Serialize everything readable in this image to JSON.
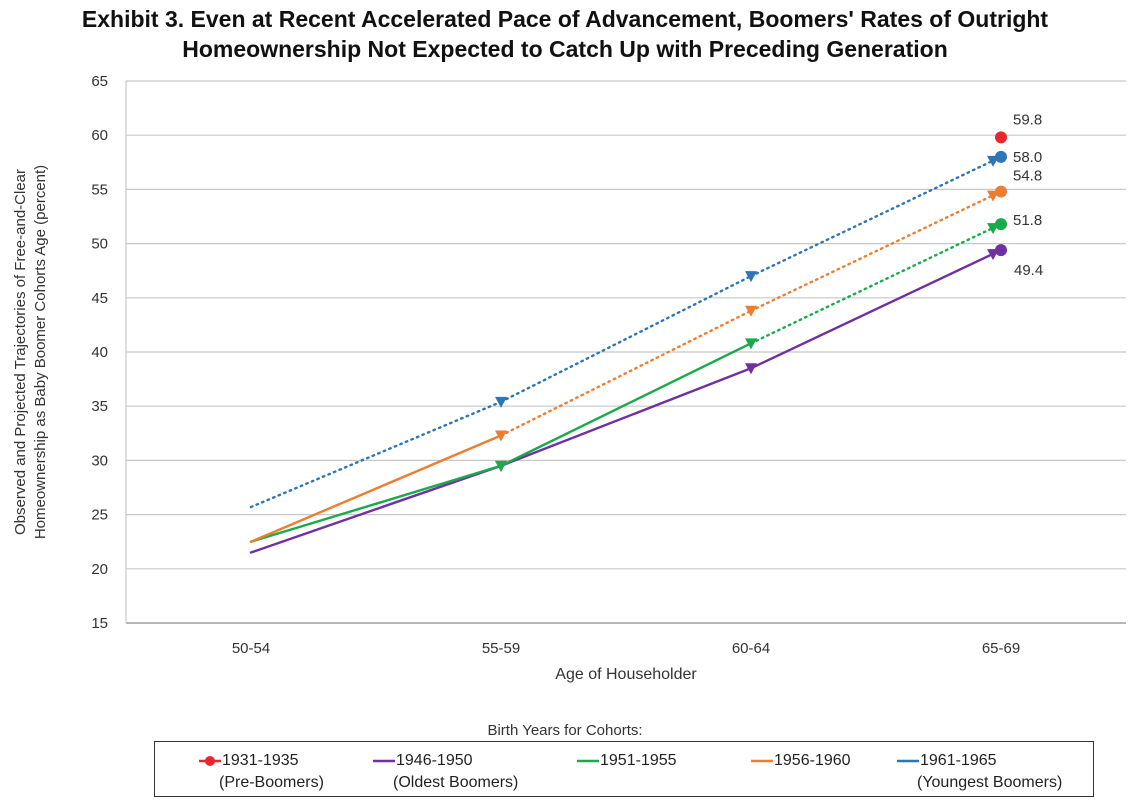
{
  "title_line1": "Exhibit 3. Even at Recent Accelerated Pace of Advancement, Boomers' Rates of Outright",
  "title_line2": "Homeownership Not Expected to Catch Up with Preceding Generation",
  "legend_caption": "Birth Years for Cohorts:",
  "chart_data": {
    "type": "line",
    "title": "Exhibit 3. Even at Recent Accelerated Pace of Advancement, Boomers' Rates of Outright Homeownership Not Expected to Catch Up with Preceding Generation",
    "xlabel": "Age of Householder",
    "ylabel_line1": "Observed and Projected Trajectories of Free-and-Clear",
    "ylabel_line2": "Homeownership as Baby Boomer Cohorts Age (percent)",
    "categories": [
      "50-54",
      "55-59",
      "60-64",
      "65-69"
    ],
    "ylim": [
      15,
      65
    ],
    "yticks": [
      15,
      20,
      25,
      30,
      35,
      40,
      45,
      50,
      55,
      60,
      65
    ],
    "grid": true,
    "legend_position": "bottom",
    "series": [
      {
        "name": "1931-1935",
        "sub": "(Pre-Boomers)",
        "color": "#e8262c",
        "values": [
          null,
          null,
          null,
          59.8
        ],
        "observed_through": 3,
        "end_marker": "circle",
        "end_label": "59.8"
      },
      {
        "name": "1946-1950",
        "sub": "(Oldest Boomers)",
        "color": "#7030a0",
        "values": [
          21.5,
          29.5,
          38.5,
          49.4
        ],
        "observed_through": 3,
        "end_marker": "circle",
        "end_label": "49.4"
      },
      {
        "name": "1951-1955",
        "sub": "",
        "color": "#1aa94c",
        "values": [
          22.5,
          29.5,
          40.8,
          51.8
        ],
        "observed_through": 2,
        "end_marker": "circle",
        "end_label": "51.8"
      },
      {
        "name": "1956-1960",
        "sub": "",
        "color": "#ed7d31",
        "values": [
          22.5,
          32.3,
          43.8,
          54.8
        ],
        "observed_through": 1,
        "end_marker": "circle",
        "end_label": "54.8"
      },
      {
        "name": "1961-1965",
        "sub": "(Youngest Boomers)",
        "color": "#2e75b6",
        "values": [
          25.7,
          35.4,
          47.0,
          58.0
        ],
        "observed_through": 0,
        "end_marker": "circle",
        "end_label": "58.0"
      }
    ]
  }
}
